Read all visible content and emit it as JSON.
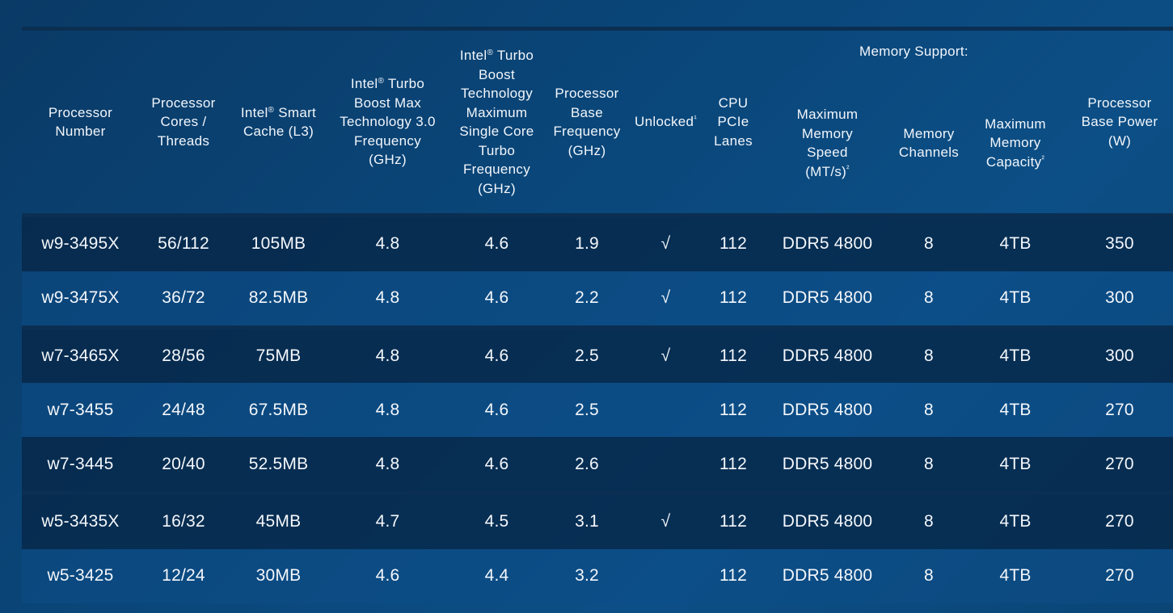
{
  "chart_data": {
    "type": "table",
    "memory_group_label": "Memory Support:",
    "columns": [
      {
        "key": "processor",
        "lines": [
          "Processor",
          "Number"
        ]
      },
      {
        "key": "cores",
        "lines": [
          "Processor",
          "Cores /",
          "Threads"
        ]
      },
      {
        "key": "cache",
        "lines": [
          "Intel® Smart",
          "Cache (L3)"
        ]
      },
      {
        "key": "turbo_max_3",
        "lines": [
          "Intel® Turbo",
          "Boost Max",
          "Technology 3.0",
          "Frequency",
          "(GHz)"
        ]
      },
      {
        "key": "turbo_single",
        "lines": [
          "Intel® Turbo",
          "Boost",
          "Technology",
          "Maximum",
          "Single Core",
          "Turbo",
          "Frequency",
          "(GHz)"
        ]
      },
      {
        "key": "base_freq",
        "lines": [
          "Processor",
          "Base",
          "Frequency",
          "(GHz)"
        ]
      },
      {
        "key": "unlocked",
        "lines": [
          "Unlocked¹"
        ]
      },
      {
        "key": "pcie",
        "lines": [
          "CPU",
          "PCIe",
          "Lanes"
        ]
      },
      {
        "key": "mem_speed",
        "lines": [
          "Maximum",
          "Memory",
          "Speed",
          "(MT/s)²"
        ]
      },
      {
        "key": "mem_channels",
        "lines": [
          "Memory",
          "Channels"
        ]
      },
      {
        "key": "mem_capacity",
        "lines": [
          "Maximum",
          "Memory",
          "Capacity²"
        ]
      },
      {
        "key": "base_power",
        "lines": [
          "Processor",
          "Base Power",
          "(W)"
        ]
      }
    ],
    "rows": [
      [
        "w9-3495X",
        "56/112",
        "105MB",
        "4.8",
        "4.6",
        "1.9",
        "√",
        "112",
        "DDR5 4800",
        "8",
        "4TB",
        "350"
      ],
      [
        "w9-3475X",
        "36/72",
        "82.5MB",
        "4.8",
        "4.6",
        "2.2",
        "√",
        "112",
        "DDR5 4800",
        "8",
        "4TB",
        "300"
      ],
      [
        "w7-3465X",
        "28/56",
        "75MB",
        "4.8",
        "4.6",
        "2.5",
        "√",
        "112",
        "DDR5 4800",
        "8",
        "4TB",
        "300"
      ],
      [
        "w7-3455",
        "24/48",
        "67.5MB",
        "4.8",
        "4.6",
        "2.5",
        "",
        "112",
        "DDR5 4800",
        "8",
        "4TB",
        "270"
      ],
      [
        "w7-3445",
        "20/40",
        "52.5MB",
        "4.8",
        "4.6",
        "2.6",
        "",
        "112",
        "DDR5 4800",
        "8",
        "4TB",
        "270"
      ],
      [
        "w5-3435X",
        "16/32",
        "45MB",
        "4.7",
        "4.5",
        "3.1",
        "√",
        "112",
        "DDR5 4800",
        "8",
        "4TB",
        "270"
      ],
      [
        "w5-3425",
        "12/24",
        "30MB",
        "4.6",
        "4.4",
        "3.2",
        "",
        "112",
        "DDR5 4800",
        "8",
        "4TB",
        "270"
      ]
    ],
    "row_shading": [
      "dark",
      "light",
      "dark",
      "light",
      "dark",
      "dark",
      "light"
    ],
    "separators_before_rows": [
      2,
      5
    ]
  },
  "colors": {
    "background": "#0a4679",
    "rule": "#0b2f52",
    "row_dark": "#062646",
    "row_light": "#0e4e8a",
    "text": "#ffffff"
  }
}
